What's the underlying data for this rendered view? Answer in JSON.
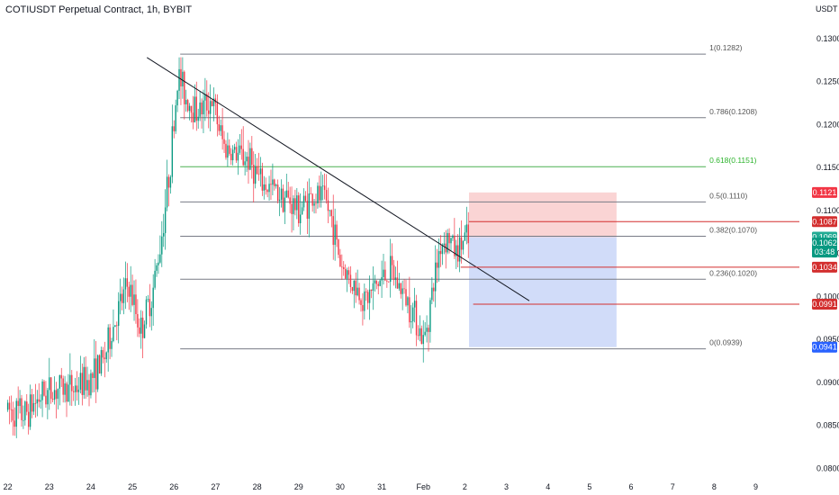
{
  "header": {
    "title": "COTIUSDT Perpetual Contract, 1h, BYBIT",
    "unit": "USDT"
  },
  "colors": {
    "up": "#089981",
    "down": "#f23645",
    "fib_line": "#787b86",
    "fib_green": "#4caf50",
    "red_line": "#d32f2f",
    "stop_zone": "#f8c6c6",
    "target_zone": "#c6d3f7",
    "trendline": "#131722"
  },
  "chart_data": {
    "type": "candlestick",
    "symbol": "COTIUSDT Perpetual Contract",
    "interval": "1h",
    "exchange": "BYBIT",
    "y_axis": {
      "ticks": [
        {
          "value": 0.13,
          "label": "0.1300"
        },
        {
          "value": 0.125,
          "label": "0.1250"
        },
        {
          "value": 0.12,
          "label": "0.1200"
        },
        {
          "value": 0.115,
          "label": "0.1150"
        },
        {
          "value": 0.11,
          "label": "0.1100"
        },
        {
          "value": 0.105,
          "label": "0.1050"
        },
        {
          "value": 0.1,
          "label": "0.1000"
        },
        {
          "value": 0.095,
          "label": "0.0950"
        },
        {
          "value": 0.09,
          "label": "0.0900"
        },
        {
          "value": 0.085,
          "label": "0.0850"
        },
        {
          "value": 0.08,
          "label": "0.0800"
        }
      ],
      "range": [
        0.0792,
        0.1324
      ]
    },
    "x_axis": {
      "ticks": [
        {
          "day": 22,
          "label": "22"
        },
        {
          "day": 23,
          "label": "23"
        },
        {
          "day": 24,
          "label": "24"
        },
        {
          "day": 25,
          "label": "25"
        },
        {
          "day": 26,
          "label": "26"
        },
        {
          "day": 27,
          "label": "27"
        },
        {
          "day": 28,
          "label": "28"
        },
        {
          "day": 29,
          "label": "29"
        },
        {
          "day": 30,
          "label": "30"
        },
        {
          "day": 31,
          "label": "31"
        },
        {
          "day": 32,
          "label": "Feb"
        },
        {
          "day": 33,
          "label": "2"
        },
        {
          "day": 34,
          "label": "3"
        },
        {
          "day": 35,
          "label": "4"
        },
        {
          "day": 36,
          "label": "5"
        },
        {
          "day": 37,
          "label": "6"
        },
        {
          "day": 38,
          "label": "7"
        },
        {
          "day": 39,
          "label": "8"
        },
        {
          "day": 40,
          "label": "9"
        }
      ],
      "range": [
        21.9,
        41.05
      ]
    },
    "price_path": [
      [
        22.0,
        0.0868
      ],
      [
        22.4,
        0.0862
      ],
      [
        22.8,
        0.0885
      ],
      [
        23.2,
        0.0893
      ],
      [
        23.6,
        0.0893
      ],
      [
        24.0,
        0.0905
      ],
      [
        24.3,
        0.0925
      ],
      [
        24.6,
        0.0975
      ],
      [
        24.9,
        0.1015
      ],
      [
        25.2,
        0.096
      ],
      [
        25.5,
        0.1008
      ],
      [
        25.7,
        0.107
      ],
      [
        25.9,
        0.115
      ],
      [
        26.1,
        0.1258
      ],
      [
        26.3,
        0.123
      ],
      [
        26.6,
        0.1215
      ],
      [
        26.9,
        0.123
      ],
      [
        27.2,
        0.1175
      ],
      [
        27.5,
        0.1165
      ],
      [
        27.8,
        0.116
      ],
      [
        28.1,
        0.113
      ],
      [
        28.4,
        0.1125
      ],
      [
        28.7,
        0.1115
      ],
      [
        29.0,
        0.11
      ],
      [
        29.3,
        0.1115
      ],
      [
        29.6,
        0.1115
      ],
      [
        29.8,
        0.109
      ],
      [
        30.0,
        0.104
      ],
      [
        30.3,
        0.1015
      ],
      [
        30.6,
        0.0995
      ],
      [
        30.9,
        0.1015
      ],
      [
        31.2,
        0.103
      ],
      [
        31.5,
        0.1005
      ],
      [
        31.8,
        0.098
      ],
      [
        32.0,
        0.0945
      ],
      [
        32.2,
        0.1
      ],
      [
        32.4,
        0.106
      ],
      [
        32.6,
        0.107
      ],
      [
        32.8,
        0.105
      ],
      [
        33.0,
        0.1068
      ],
      [
        33.1,
        0.1062
      ]
    ],
    "fib_levels": [
      {
        "ratio": "1",
        "value": 0.1282,
        "label": "1(0.1282)",
        "color": "gray"
      },
      {
        "ratio": "0.786",
        "value": 0.1208,
        "label": "0.786(0.1208)",
        "color": "gray"
      },
      {
        "ratio": "0.618",
        "value": 0.1151,
        "label": "0.618(0.1151)",
        "color": "green"
      },
      {
        "ratio": "0.5",
        "value": 0.111,
        "label": "0.5(0.1110)",
        "color": "gray"
      },
      {
        "ratio": "0.382",
        "value": 0.107,
        "label": "0.382(0.1070)",
        "color": "gray"
      },
      {
        "ratio": "0.236",
        "value": 0.102,
        "label": "0.236(0.1020)",
        "color": "gray"
      },
      {
        "ratio": "0",
        "value": 0.0939,
        "label": "0(0.0939)",
        "color": "gray"
      }
    ],
    "fib_x_range": [
      26.15,
      38.8
    ],
    "trendline": {
      "from": [
        25.35,
        0.1278
      ],
      "to": [
        34.55,
        0.0995
      ]
    },
    "position": {
      "x_range": [
        33.1,
        36.65
      ],
      "stop_top": 0.1121,
      "entry": 0.1069,
      "target": 0.0941
    },
    "horizontal_lines": [
      {
        "value": 0.1087,
        "x_from": 33.1
      },
      {
        "value": 0.1034,
        "x_from": 32.9
      },
      {
        "value": 0.0991,
        "x_from": 33.2
      }
    ],
    "price_tags": [
      {
        "value": 0.1121,
        "label": "0.1121",
        "bg": "#f23645",
        "sub": ""
      },
      {
        "value": 0.1087,
        "label": "0.1087",
        "bg": "#d32f2f",
        "sub": ""
      },
      {
        "value": 0.1069,
        "label": "0.1069",
        "bg": "#22ab94",
        "sub": ""
      },
      {
        "value": 0.1062,
        "label": "0.1062",
        "bg": "#089981",
        "sub": "03:48"
      },
      {
        "value": 0.1034,
        "label": "0.1034",
        "bg": "#d32f2f",
        "sub": ""
      },
      {
        "value": 0.0991,
        "label": "0.0991",
        "bg": "#d32f2f",
        "sub": ""
      },
      {
        "value": 0.0941,
        "label": "0.0941",
        "bg": "#2962ff",
        "sub": ""
      }
    ]
  }
}
